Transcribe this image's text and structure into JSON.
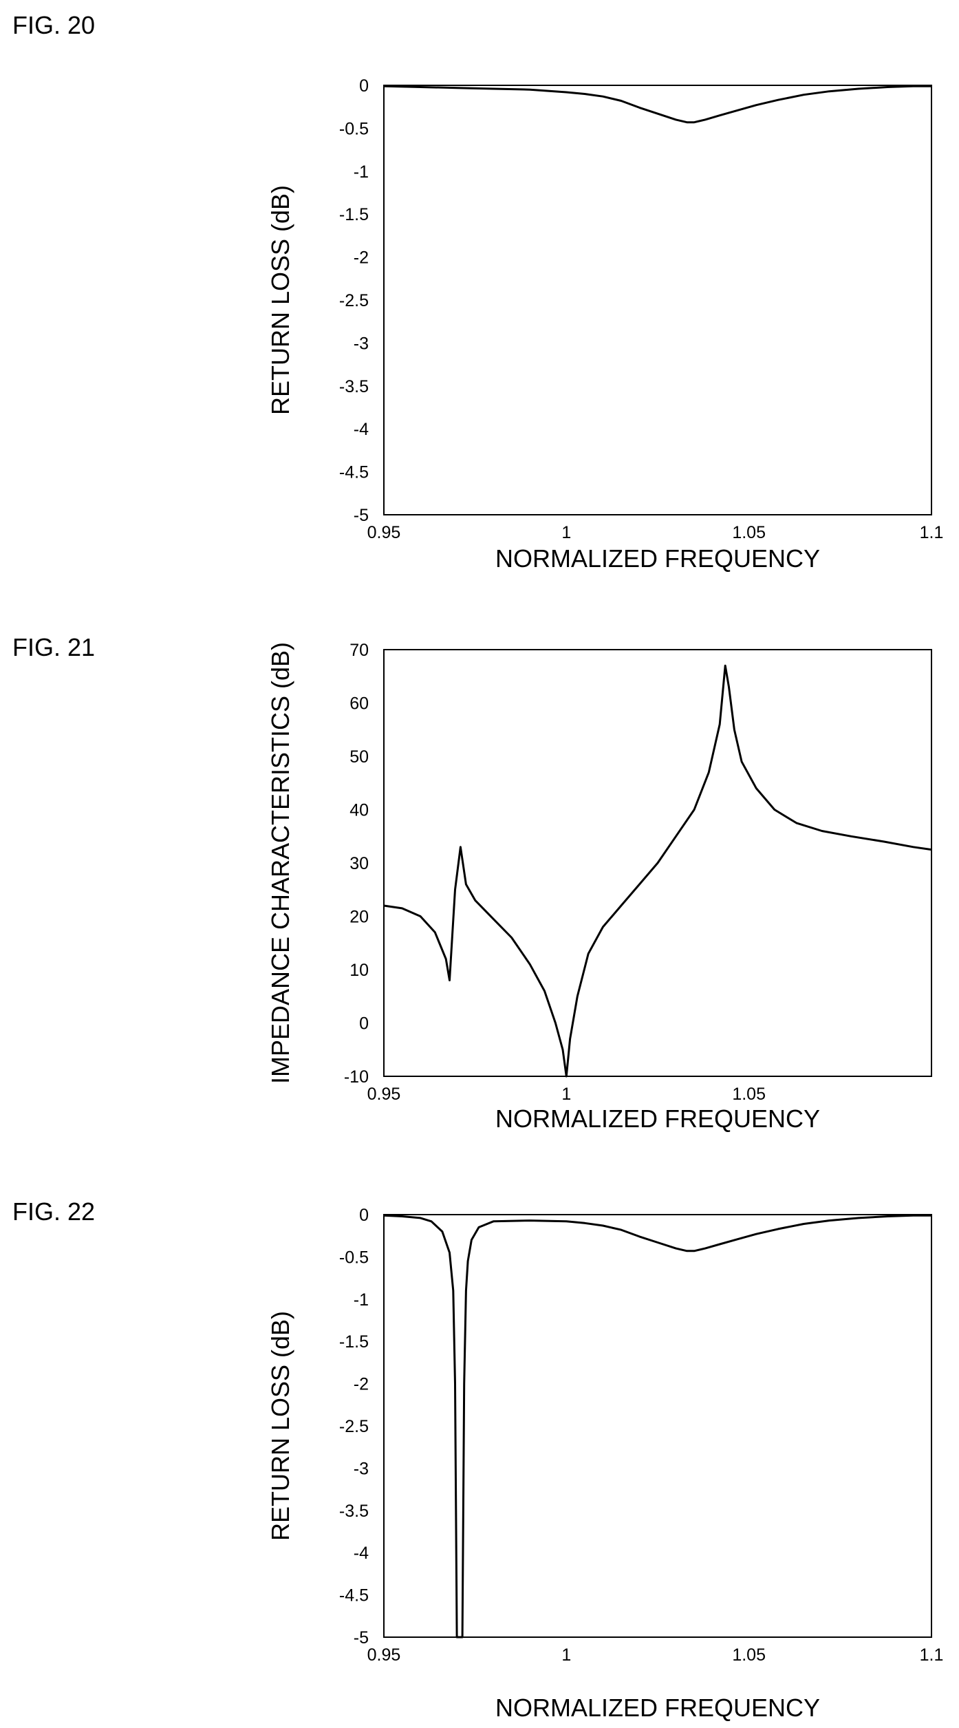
{
  "figures": [
    {
      "label": "FIG. 20"
    },
    {
      "label": "FIG. 21"
    },
    {
      "label": "FIG. 22"
    }
  ],
  "chart_data": [
    {
      "type": "line",
      "title": "",
      "xlabel": "NORMALIZED FREQUENCY",
      "ylabel": "RETURN LOSS (dB)",
      "xlim": [
        0.95,
        1.1
      ],
      "ylim": [
        -5,
        0
      ],
      "xticks": [
        "0.95",
        "1",
        "1.05",
        "1.1"
      ],
      "xtick_values": [
        0.95,
        1.0,
        1.05,
        1.1
      ],
      "yticks": [
        "0",
        "-0.5",
        "-1",
        "-1.5",
        "-2",
        "-2.5",
        "-3",
        "-3.5",
        "-4",
        "-4.5",
        "-5"
      ],
      "ytick_values": [
        0,
        -0.5,
        -1,
        -1.5,
        -2,
        -2.5,
        -3,
        -3.5,
        -4,
        -4.5,
        -5
      ],
      "grid": false,
      "series": [
        {
          "x": [
            0.95,
            0.96,
            0.97,
            0.98,
            0.99,
            1.0,
            1.005,
            1.01,
            1.015,
            1.02,
            1.025,
            1.03,
            1.033,
            1.035,
            1.038,
            1.042,
            1.047,
            1.052,
            1.058,
            1.065,
            1.072,
            1.08,
            1.088,
            1.095,
            1.1
          ],
          "y": [
            -0.01,
            -0.02,
            -0.03,
            -0.04,
            -0.05,
            -0.08,
            -0.1,
            -0.13,
            -0.18,
            -0.26,
            -0.33,
            -0.4,
            -0.43,
            -0.43,
            -0.4,
            -0.35,
            -0.29,
            -0.23,
            -0.17,
            -0.11,
            -0.07,
            -0.04,
            -0.02,
            -0.01,
            -0.01
          ]
        }
      ]
    },
    {
      "type": "line",
      "title": "",
      "xlabel": "NORMALIZED FREQUENCY",
      "ylabel": "IMPEDANCE CHARACTERISTICS (dB)",
      "xlim": [
        0.95,
        1.1
      ],
      "ylim": [
        -10,
        70
      ],
      "xticks": [
        "0.95",
        "1",
        "1.05"
      ],
      "xtick_values": [
        0.95,
        1.0,
        1.05
      ],
      "yticks": [
        "70",
        "60",
        "50",
        "40",
        "30",
        "20",
        "10",
        "0",
        "-10"
      ],
      "ytick_values": [
        70,
        60,
        50,
        40,
        30,
        20,
        10,
        0,
        -10
      ],
      "grid": false,
      "series": [
        {
          "x": [
            0.95,
            0.955,
            0.96,
            0.964,
            0.967,
            0.968,
            0.9695,
            0.971,
            0.9725,
            0.975,
            0.98,
            0.985,
            0.99,
            0.994,
            0.997,
            0.999,
            1.0,
            1.001,
            1.003,
            1.006,
            1.01,
            1.015,
            1.02,
            1.025,
            1.03,
            1.035,
            1.039,
            1.042,
            1.0435,
            1.0445,
            1.046,
            1.048,
            1.052,
            1.057,
            1.063,
            1.07,
            1.078,
            1.087,
            1.095,
            1.1
          ],
          "y": [
            22,
            21.5,
            20,
            17,
            12,
            8,
            25,
            33,
            26,
            23,
            19.5,
            16,
            11,
            6,
            0,
            -5,
            -10,
            -3,
            5,
            13,
            18,
            22,
            26,
            30,
            35,
            40,
            47,
            56,
            67,
            63,
            55,
            49,
            44,
            40,
            37.5,
            36,
            35,
            34,
            33,
            32.5
          ]
        }
      ]
    },
    {
      "type": "line",
      "title": "",
      "xlabel": "NORMALIZED FREQUENCY",
      "ylabel": "RETURN LOSS (dB)",
      "xlim": [
        0.95,
        1.1
      ],
      "ylim": [
        -5,
        0
      ],
      "xticks": [
        "0.95",
        "1",
        "1.05",
        "1.1"
      ],
      "xtick_values": [
        0.95,
        1.0,
        1.05,
        1.1
      ],
      "yticks": [
        "0",
        "-0.5",
        "-1",
        "-1.5",
        "-2",
        "-2.5",
        "-3",
        "-3.5",
        "-4",
        "-4.5",
        "-5"
      ],
      "ytick_values": [
        0,
        -0.5,
        -1,
        -1.5,
        -2,
        -2.5,
        -3,
        -3.5,
        -4,
        -4.5,
        -5
      ],
      "grid": false,
      "series": [
        {
          "x": [
            0.95,
            0.955,
            0.96,
            0.963,
            0.966,
            0.968,
            0.969,
            0.9695,
            0.97,
            0.9705,
            0.971,
            0.9715,
            0.972,
            0.9725,
            0.973,
            0.974,
            0.976,
            0.98,
            0.99,
            1.0,
            1.005,
            1.01,
            1.015,
            1.02,
            1.025,
            1.03,
            1.033,
            1.035,
            1.038,
            1.042,
            1.047,
            1.052,
            1.058,
            1.065,
            1.072,
            1.08,
            1.088,
            1.095,
            1.1
          ],
          "y": [
            -0.01,
            -0.02,
            -0.04,
            -0.08,
            -0.2,
            -0.45,
            -0.9,
            -2.0,
            -5,
            -5,
            -5,
            -5,
            -2.0,
            -0.9,
            -0.55,
            -0.3,
            -0.15,
            -0.08,
            -0.07,
            -0.08,
            -0.1,
            -0.13,
            -0.18,
            -0.26,
            -0.33,
            -0.4,
            -0.43,
            -0.43,
            -0.4,
            -0.35,
            -0.29,
            -0.23,
            -0.17,
            -0.11,
            -0.07,
            -0.04,
            -0.02,
            -0.01,
            -0.01
          ]
        }
      ]
    }
  ]
}
